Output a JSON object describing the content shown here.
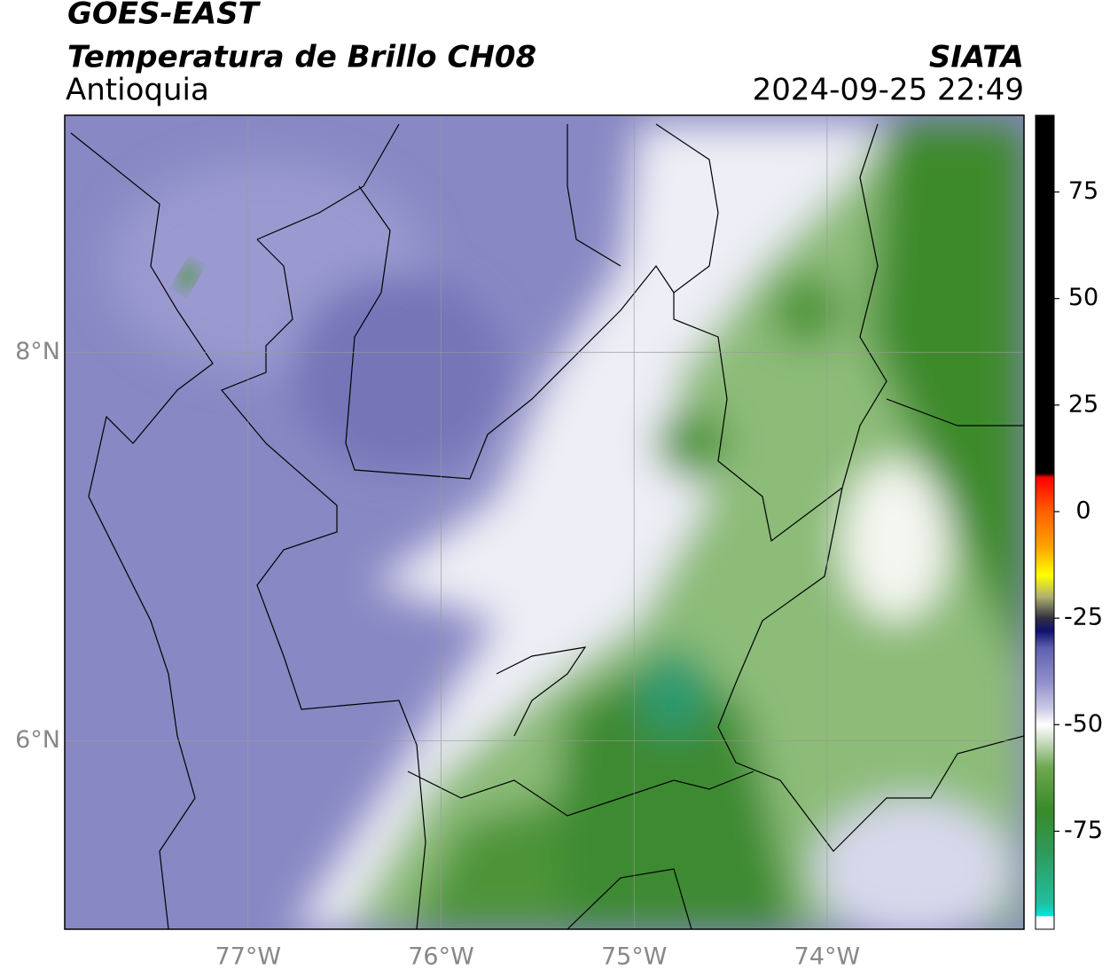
{
  "chart_data": {
    "type": "map",
    "title": "GOES-EAST",
    "subtitle": "Temperatura de Brillo CH08",
    "region": "Antioquia",
    "source": "SIATA",
    "datetime": "2024-09-25 22:49",
    "xlim": [
      -77.95,
      -72.98
    ],
    "ylim": [
      5.03,
      9.22
    ],
    "xticks": [
      {
        "value": -77,
        "label": "77°W"
      },
      {
        "value": -76,
        "label": "76°W"
      },
      {
        "value": -75,
        "label": "75°W"
      },
      {
        "value": -74,
        "label": "74°W"
      }
    ],
    "yticks": [
      {
        "value": 6,
        "label": "6°N"
      },
      {
        "value": 8,
        "label": "8°N"
      }
    ],
    "grid": true,
    "colorbar": {
      "lim": [
        -98,
        93
      ],
      "ticks": [
        75,
        50,
        25,
        0,
        -25,
        -50,
        -75
      ],
      "stops": [
        {
          "value": -98,
          "color": "#ffffff"
        },
        {
          "value": -95,
          "color": "#ffffff"
        },
        {
          "value": -94.9,
          "color": "#00e8e0"
        },
        {
          "value": -92,
          "color": "#20c0a0"
        },
        {
          "value": -80,
          "color": "#2e9a5a"
        },
        {
          "value": -70,
          "color": "#3a8a28"
        },
        {
          "value": -60,
          "color": "#6ea850"
        },
        {
          "value": -54,
          "color": "#c8dcc0"
        },
        {
          "value": -50,
          "color": "#ffffff"
        },
        {
          "value": -46,
          "color": "#c8c8e4"
        },
        {
          "value": -40,
          "color": "#9090cc"
        },
        {
          "value": -32,
          "color": "#6060b0"
        },
        {
          "value": -28,
          "color": "#101070"
        },
        {
          "value": -25,
          "color": "#303040"
        },
        {
          "value": -20,
          "color": "#b0b070"
        },
        {
          "value": -15,
          "color": "#ffff00"
        },
        {
          "value": -8,
          "color": "#ffa000"
        },
        {
          "value": 0,
          "color": "#ff6000"
        },
        {
          "value": 8,
          "color": "#ff0000"
        },
        {
          "value": 9,
          "color": "#000000"
        },
        {
          "value": 93,
          "color": "#000000"
        }
      ]
    }
  }
}
